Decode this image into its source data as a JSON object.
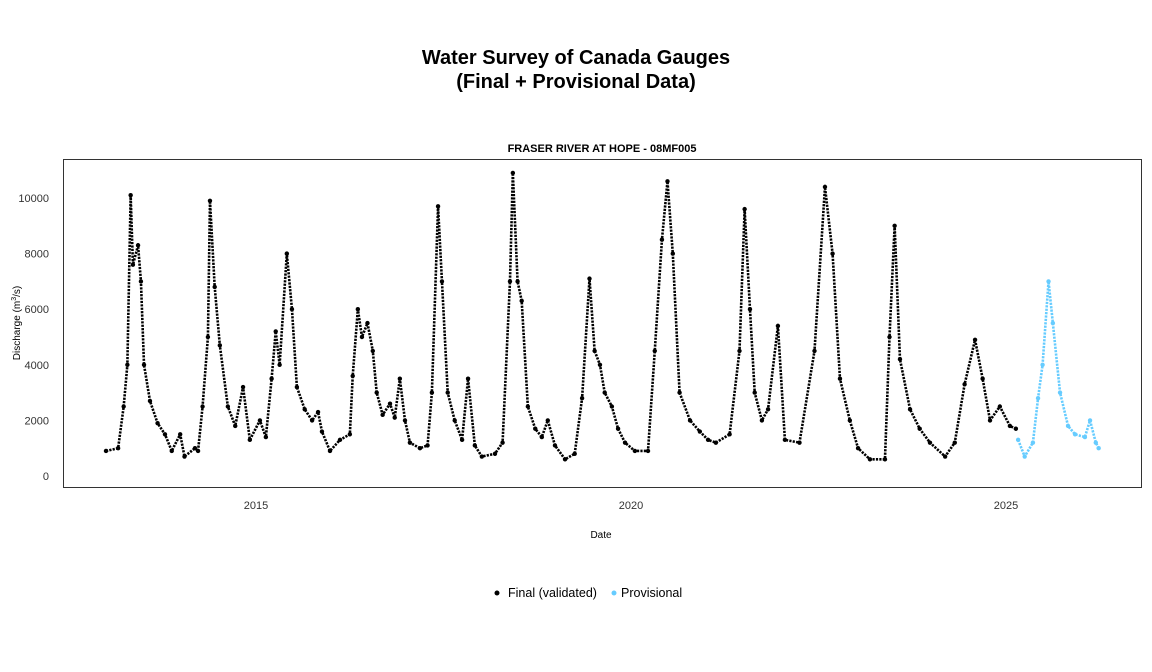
{
  "chart_data": {
    "type": "scatter",
    "title": "Water Survey of Canada Gauges",
    "title_line2": "(Final + Provisional Data)",
    "subtitle": "FRASER RIVER AT HOPE - 08MF005",
    "xlabel": "Date",
    "ylabel": "Discharge (m³/s)",
    "ylabel_parts": {
      "before": "Discharge (m",
      "sup": "3",
      "after": "/s)"
    },
    "x_ticks": [
      "2015",
      "2020",
      "2025"
    ],
    "y_ticks": [
      "0",
      "2000",
      "4000",
      "6000",
      "8000",
      "10000"
    ],
    "ylim": [
      0,
      11000
    ],
    "xlim": [
      "2012-06-15",
      "2026-07-15"
    ],
    "grid": false,
    "legend_position": "bottom",
    "series": [
      {
        "name": "Final (validated)",
        "color": "#000000",
        "points": [
          [
            "2013-01-01",
            900
          ],
          [
            "2013-03-01",
            1000
          ],
          [
            "2013-03-28",
            2500
          ],
          [
            "2013-04-15",
            4000
          ],
          [
            "2013-05-01",
            10100
          ],
          [
            "2013-05-12",
            7600
          ],
          [
            "2013-06-06",
            8300
          ],
          [
            "2013-06-20",
            7000
          ],
          [
            "2013-07-05",
            4000
          ],
          [
            "2013-08-03",
            2700
          ],
          [
            "2013-09-09",
            1900
          ],
          [
            "2013-10-15",
            1500
          ],
          [
            "2013-11-17",
            900
          ],
          [
            "2013-12-28",
            1500
          ],
          [
            "2014-01-18",
            700
          ],
          [
            "2014-03-10",
            1000
          ],
          [
            "2014-03-25",
            900
          ],
          [
            "2014-04-16",
            2500
          ],
          [
            "2014-05-12",
            5000
          ],
          [
            "2014-05-22",
            9900
          ],
          [
            "2014-06-14",
            6800
          ],
          [
            "2014-07-09",
            4700
          ],
          [
            "2014-08-17",
            2500
          ],
          [
            "2014-09-22",
            1800
          ],
          [
            "2014-10-30",
            3200
          ],
          [
            "2014-12-02",
            1300
          ],
          [
            "2015-01-20",
            2000
          ],
          [
            "2015-02-18",
            1400
          ],
          [
            "2015-03-18",
            3500
          ],
          [
            "2015-04-07",
            5200
          ],
          [
            "2015-04-26",
            4000
          ],
          [
            "2015-05-31",
            8000
          ],
          [
            "2015-06-25",
            6000
          ],
          [
            "2015-07-19",
            3200
          ],
          [
            "2015-08-26",
            2400
          ],
          [
            "2015-10-01",
            2000
          ],
          [
            "2015-10-30",
            2300
          ],
          [
            "2015-11-18",
            1600
          ],
          [
            "2015-12-27",
            900
          ],
          [
            "2016-02-14",
            1300
          ],
          [
            "2016-04-02",
            1500
          ],
          [
            "2016-04-16",
            3600
          ],
          [
            "2016-05-11",
            6000
          ],
          [
            "2016-05-31",
            5000
          ],
          [
            "2016-06-27",
            5500
          ],
          [
            "2016-07-23",
            4500
          ],
          [
            "2016-08-11",
            3000
          ],
          [
            "2016-09-09",
            2200
          ],
          [
            "2016-10-15",
            2600
          ],
          [
            "2016-11-07",
            2100
          ],
          [
            "2016-12-02",
            3500
          ],
          [
            "2016-12-27",
            2000
          ],
          [
            "2017-01-20",
            1200
          ],
          [
            "2017-03-10",
            1000
          ],
          [
            "2017-04-16",
            1100
          ],
          [
            "2017-05-07",
            3000
          ],
          [
            "2017-06-06",
            9700
          ],
          [
            "2017-06-25",
            7000
          ],
          [
            "2017-07-23",
            3000
          ],
          [
            "2017-08-26",
            2000
          ],
          [
            "2017-10-01",
            1300
          ],
          [
            "2017-10-30",
            3500
          ],
          [
            "2017-12-02",
            1100
          ],
          [
            "2018-01-05",
            700
          ],
          [
            "2018-03-10",
            800
          ],
          [
            "2018-04-16",
            1200
          ],
          [
            "2018-05-22",
            7000
          ],
          [
            "2018-06-05",
            10900
          ],
          [
            "2018-06-28",
            7000
          ],
          [
            "2018-07-18",
            6300
          ],
          [
            "2018-08-17",
            2500
          ],
          [
            "2018-09-22",
            1700
          ],
          [
            "2018-10-24",
            1400
          ],
          [
            "2018-11-22",
            2000
          ],
          [
            "2018-12-27",
            1100
          ],
          [
            "2019-02-14",
            600
          ],
          [
            "2019-04-02",
            800
          ],
          [
            "2019-05-08",
            2800
          ],
          [
            "2019-06-13",
            7100
          ],
          [
            "2019-07-08",
            4500
          ],
          [
            "2019-08-03",
            4000
          ],
          [
            "2019-08-26",
            3000
          ],
          [
            "2019-09-30",
            2500
          ],
          [
            "2019-10-30",
            1700
          ],
          [
            "2019-12-03",
            1200
          ],
          [
            "2020-01-20",
            900
          ],
          [
            "2020-03-24",
            900
          ],
          [
            "2020-04-26",
            4500
          ],
          [
            "2020-05-31",
            8500
          ],
          [
            "2020-06-27",
            10600
          ],
          [
            "2020-07-23",
            8000
          ],
          [
            "2020-08-25",
            3000
          ],
          [
            "2020-10-15",
            2000
          ],
          [
            "2020-12-02",
            1600
          ],
          [
            "2021-01-11",
            1300
          ],
          [
            "2021-02-18",
            1200
          ],
          [
            "2021-04-26",
            1500
          ],
          [
            "2021-06-13",
            4500
          ],
          [
            "2021-07-08",
            9600
          ],
          [
            "2021-08-03",
            6000
          ],
          [
            "2021-08-26",
            3000
          ],
          [
            "2021-09-30",
            2000
          ],
          [
            "2021-10-30",
            2400
          ],
          [
            "2021-12-17",
            5400
          ],
          [
            "2022-01-20",
            1300
          ],
          [
            "2022-04-01",
            1200
          ],
          [
            "2022-06-13",
            4500
          ],
          [
            "2022-08-03",
            10400
          ],
          [
            "2022-09-09",
            8000
          ],
          [
            "2022-10-15",
            3500
          ],
          [
            "2022-12-02",
            2000
          ],
          [
            "2023-01-11",
            1000
          ],
          [
            "2023-03-10",
            600
          ],
          [
            "2023-05-22",
            600
          ],
          [
            "2023-06-13",
            5000
          ],
          [
            "2023-07-08",
            9000
          ],
          [
            "2023-08-03",
            4200
          ],
          [
            "2023-09-21",
            2400
          ],
          [
            "2023-11-07",
            1700
          ],
          [
            "2023-12-27",
            1200
          ],
          [
            "2024-03-10",
            700
          ],
          [
            "2024-04-26",
            1200
          ],
          [
            "2024-06-13",
            3300
          ],
          [
            "2024-08-03",
            4900
          ],
          [
            "2024-09-09",
            3500
          ],
          [
            "2024-10-15",
            2000
          ],
          [
            "2024-12-02",
            2500
          ],
          [
            "2025-01-20",
            1800
          ],
          [
            "2025-02-18",
            1700
          ]
        ]
      },
      {
        "name": "Provisional",
        "color": "#66CCFF",
        "points": [
          [
            "2025-03-01",
            1300
          ],
          [
            "2025-04-02",
            700
          ],
          [
            "2025-05-12",
            1200
          ],
          [
            "2025-06-06",
            2800
          ],
          [
            "2025-06-28",
            4000
          ],
          [
            "2025-07-27",
            7000
          ],
          [
            "2025-08-17",
            5500
          ],
          [
            "2025-09-21",
            3000
          ],
          [
            "2025-10-30",
            1800
          ],
          [
            "2025-12-03",
            1500
          ],
          [
            "2026-01-20",
            1400
          ],
          [
            "2026-02-14",
            2000
          ],
          [
            "2026-03-14",
            1200
          ],
          [
            "2026-03-28",
            1000
          ]
        ]
      }
    ]
  }
}
